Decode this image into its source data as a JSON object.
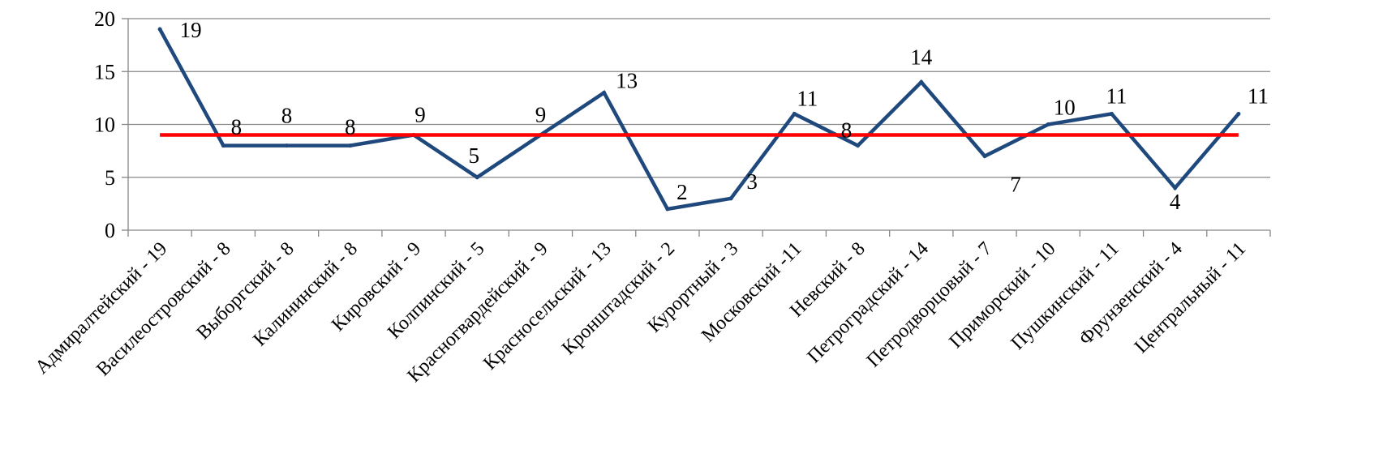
{
  "chart_data": {
    "type": "line",
    "title": "",
    "xlabel": "",
    "ylabel": "",
    "ylim": [
      0,
      20
    ],
    "yticks": [
      0,
      5,
      10,
      15,
      20
    ],
    "grid": true,
    "legend": "none",
    "categories": [
      "Адмиралтейский - 19",
      "Василеостровский - 8",
      "Выборгский - 8",
      "Калининский - 8",
      "Кировский - 9",
      "Колпинский - 5",
      "Красногвардейский - 9",
      "Красносельский - 13",
      "Кронштадский - 2",
      "Курортный - 3",
      "Московский -11",
      "Невский - 8",
      "Петроградский - 14",
      "Петродворцовый - 7",
      "Приморский - 10",
      "Пушкинский - 11",
      "Фрунзенский - 4",
      "Центральный - 11"
    ],
    "series": [
      {
        "values": [
          19,
          8,
          8,
          8,
          9,
          5,
          9,
          13,
          2,
          3,
          11,
          8,
          14,
          7,
          10,
          11,
          4,
          11
        ],
        "data_labels": [
          "19",
          "8",
          "8",
          "8",
          "9",
          "5",
          "9",
          "13",
          "2",
          "3",
          "11",
          "8",
          "14",
          "7",
          "10",
          "11",
          "4",
          "11"
        ],
        "color": "#1f497d"
      }
    ],
    "reference_line": {
      "value": 9,
      "color": "#ff0000"
    },
    "colors": {
      "grid": "#868686",
      "axis": "#868686",
      "text": "#000000"
    }
  }
}
